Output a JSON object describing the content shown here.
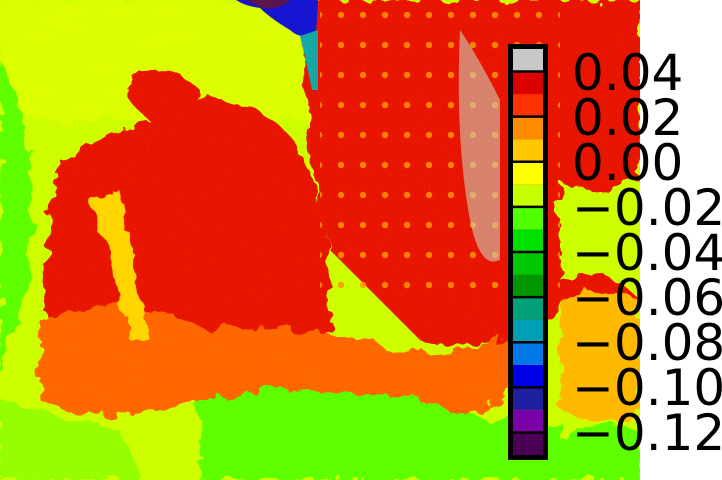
{
  "chart_data": {
    "type": "heatmap",
    "title": "",
    "xlabel": "",
    "ylabel": "",
    "colorbar": {
      "vmin": -0.13,
      "vmax": 0.05,
      "levels": [
        -0.13,
        -0.12,
        -0.11,
        -0.1,
        -0.09,
        -0.08,
        -0.07,
        -0.06,
        -0.05,
        -0.04,
        -0.03,
        -0.02,
        -0.01,
        0.0,
        0.01,
        0.02,
        0.03,
        0.04,
        0.05
      ],
      "colors": [
        "#4b0055",
        "#7a00a8",
        "#1e1ea0",
        "#0000e6",
        "#0078e6",
        "#00a0b4",
        "#00a078",
        "#009600",
        "#00c800",
        "#00e100",
        "#50ff00",
        "#c8ff00",
        "#ffff00",
        "#ffc800",
        "#ff8c00",
        "#ff3200",
        "#dc0000",
        "#c8c8c8"
      ],
      "ticks": [
        0.04,
        0.02,
        0.0,
        -0.02,
        -0.04,
        -0.06,
        -0.08,
        -0.1,
        -0.12
      ],
      "tick_labels": [
        "0.04",
        "0.02",
        "0.00",
        "−0.02",
        "−0.04",
        "−0.06",
        "−0.08",
        "−0.10",
        "−0.12"
      ]
    }
  }
}
